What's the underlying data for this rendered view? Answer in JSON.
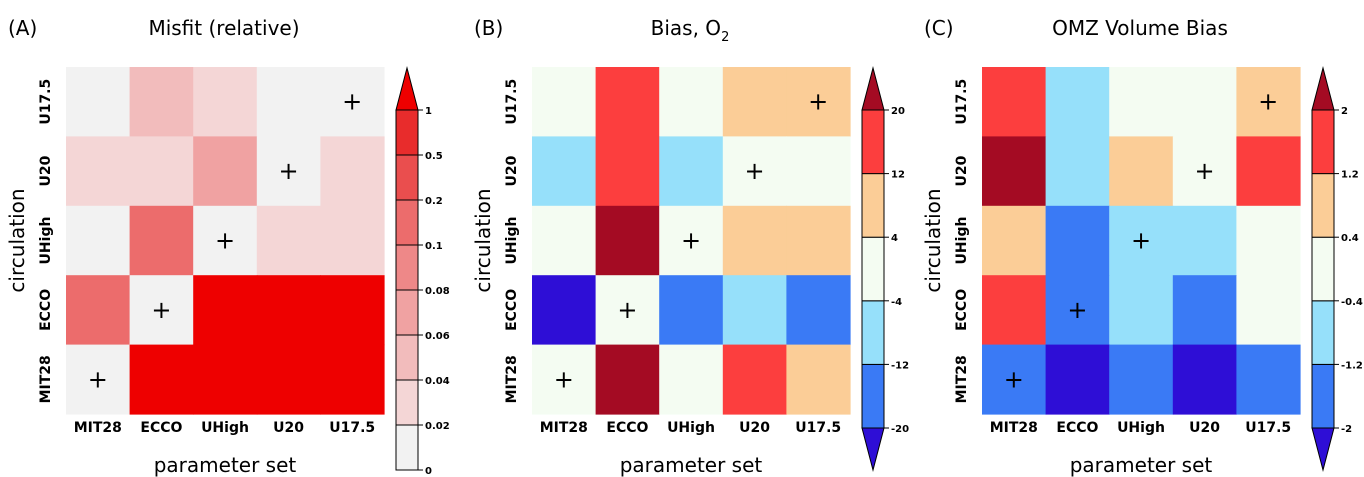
{
  "chart_data": [
    {
      "type": "heatmap",
      "panel_label": "(A)",
      "title": "Misfit (relative)",
      "xlabel": "parameter set",
      "ylabel": "circulation",
      "x_categories": [
        "MIT28",
        "ECCO",
        "UHigh",
        "U20",
        "U17.5"
      ],
      "y_categories": [
        "U17.5",
        "U20",
        "UHigh",
        "ECCO",
        "MIT28"
      ],
      "values": [
        [
          0.01,
          0.05,
          0.03,
          0.01,
          0.01
        ],
        [
          0.03,
          0.03,
          0.07,
          0.01,
          0.03
        ],
        [
          0.01,
          0.15,
          0.01,
          0.03,
          0.03
        ],
        [
          0.15,
          0.01,
          1.2,
          1.2,
          1.2
        ],
        [
          0.01,
          1.2,
          1.2,
          1.2,
          1.2
        ]
      ],
      "markers": [
        [
          0,
          4
        ],
        [
          1,
          3
        ],
        [
          2,
          2
        ],
        [
          3,
          1
        ],
        [
          4,
          0
        ]
      ],
      "marker_symbol": "+",
      "colorbar": {
        "ticks": [
          "0",
          "0.02",
          "0.04",
          "0.06",
          "0.08",
          "0.1",
          "0.2",
          "0.5",
          "1"
        ],
        "boundaries": [
          0,
          0.02,
          0.04,
          0.06,
          0.08,
          0.1,
          0.2,
          0.5,
          1
        ],
        "colors": [
          "#f2f2f2",
          "#f4d6d6",
          "#f2bcbc",
          "#f0a2a2",
          "#ee8888",
          "#ec6c6c",
          "#ea4e4e",
          "#e82c2c"
        ],
        "extend_max_color": "#ee0000",
        "extend": "max"
      }
    },
    {
      "type": "heatmap",
      "panel_label": "(B)",
      "title_main": "Bias, O",
      "title_sub": "2",
      "xlabel": "parameter set",
      "ylabel": "circulation",
      "x_categories": [
        "MIT28",
        "ECCO",
        "UHigh",
        "U20",
        "U17.5"
      ],
      "y_categories": [
        "U17.5",
        "U20",
        "UHigh",
        "ECCO",
        "MIT28"
      ],
      "values": [
        [
          0,
          16,
          0,
          8,
          8
        ],
        [
          -8,
          16,
          -8,
          0,
          0
        ],
        [
          0,
          24,
          0,
          8,
          8
        ],
        [
          -24,
          0,
          -16,
          -8,
          -16
        ],
        [
          0,
          24,
          0,
          16,
          8
        ]
      ],
      "markers": [
        [
          0,
          4
        ],
        [
          1,
          3
        ],
        [
          2,
          2
        ],
        [
          3,
          1
        ],
        [
          4,
          0
        ]
      ],
      "marker_symbol": "+",
      "colorbar": {
        "ticks": [
          "-20",
          "-12",
          "-4",
          "4",
          "12",
          "20"
        ],
        "boundaries": [
          -20,
          -12,
          -4,
          4,
          12,
          20
        ],
        "colors": [
          "#3a7af5",
          "#96e0fa",
          "#f4fcf2",
          "#fbcd97",
          "#fc3e3e"
        ],
        "extend_min_color": "#2e0ed6",
        "extend_max_color": "#a40b23",
        "extend": "both"
      }
    },
    {
      "type": "heatmap",
      "panel_label": "(C)",
      "title": "OMZ Volume Bias",
      "xlabel": "parameter set",
      "ylabel": "circulation",
      "x_categories": [
        "MIT28",
        "ECCO",
        "UHigh",
        "U20",
        "U17.5"
      ],
      "y_categories": [
        "U17.5",
        "U20",
        "UHigh",
        "ECCO",
        "MIT28"
      ],
      "values": [
        [
          1.6,
          -0.8,
          0,
          0,
          0.8
        ],
        [
          2.4,
          -0.8,
          0.8,
          0,
          1.6
        ],
        [
          0.8,
          -1.6,
          -0.8,
          -0.8,
          0
        ],
        [
          1.6,
          -1.6,
          -0.8,
          -1.6,
          0
        ],
        [
          -1.6,
          -2.4,
          -1.6,
          -2.4,
          -1.6
        ]
      ],
      "markers": [
        [
          0,
          4
        ],
        [
          1,
          3
        ],
        [
          2,
          2
        ],
        [
          3,
          1
        ],
        [
          4,
          0
        ]
      ],
      "marker_symbol": "+",
      "colorbar": {
        "ticks": [
          "-2",
          "-1.2",
          "-0.4",
          "0.4",
          "1.2",
          "2"
        ],
        "boundaries": [
          -2,
          -1.2,
          -0.4,
          0.4,
          1.2,
          2
        ],
        "colors": [
          "#3a7af5",
          "#96e0fa",
          "#f4fcf2",
          "#fbcd97",
          "#fc3e3e"
        ],
        "extend_min_color": "#2e0ed6",
        "extend_max_color": "#a40b23",
        "extend": "both"
      }
    }
  ]
}
